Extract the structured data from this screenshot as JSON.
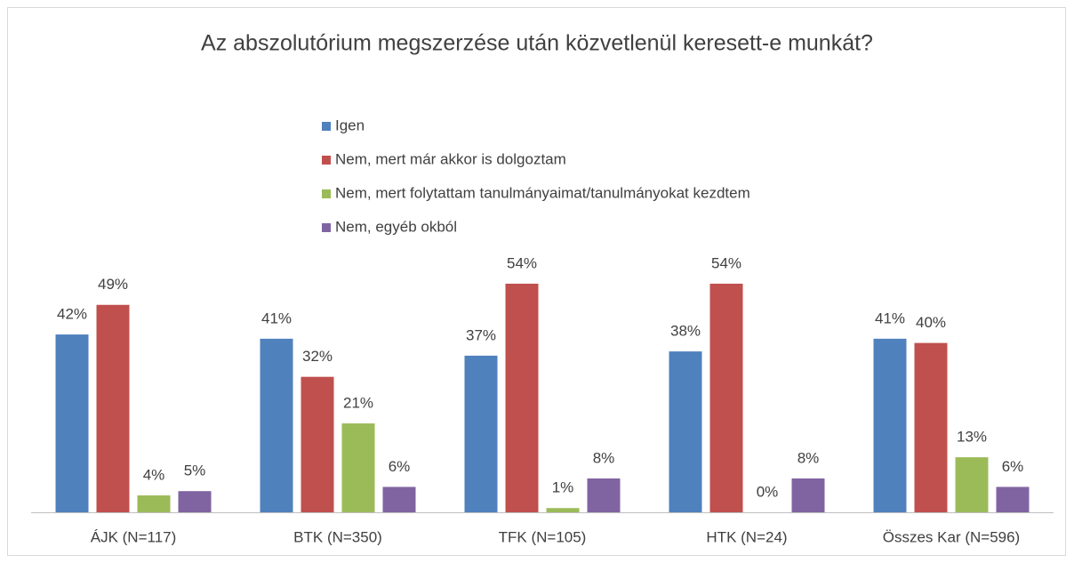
{
  "chart_data": {
    "type": "bar",
    "title": "Az abszolutórium megszerzése után közvetlenül keresett-e munkát?",
    "categories": [
      "ÁJK (N=117)",
      "BTK (N=350)",
      "TFK (N=105)",
      "HTK (N=24)",
      "Összes Kar (N=596)"
    ],
    "series": [
      {
        "name": "Igen",
        "color": "#4f81bd",
        "values": [
          42,
          41,
          37,
          38,
          41
        ],
        "value_labels": [
          "42%",
          "41%",
          "37%",
          "38%",
          "41%"
        ]
      },
      {
        "name": "Nem, mert már akkor is dolgoztam",
        "color": "#c0504d",
        "values": [
          49,
          32,
          54,
          54,
          40
        ],
        "value_labels": [
          "49%",
          "32%",
          "54%",
          "54%",
          "40%"
        ]
      },
      {
        "name": "Nem, mert folytattam tanulmányaimat/tanulmányokat kezdtem",
        "color": "#9bbb59",
        "values": [
          4,
          21,
          1,
          0,
          13
        ],
        "value_labels": [
          "4%",
          "21%",
          "1%",
          "0%",
          "13%"
        ]
      },
      {
        "name": "Nem, egyéb okból",
        "color": "#8064a2",
        "values": [
          5,
          6,
          8,
          8,
          6
        ],
        "value_labels": [
          "5%",
          "6%",
          "8%",
          "8%",
          "6%"
        ]
      }
    ],
    "legend": "top"
  }
}
